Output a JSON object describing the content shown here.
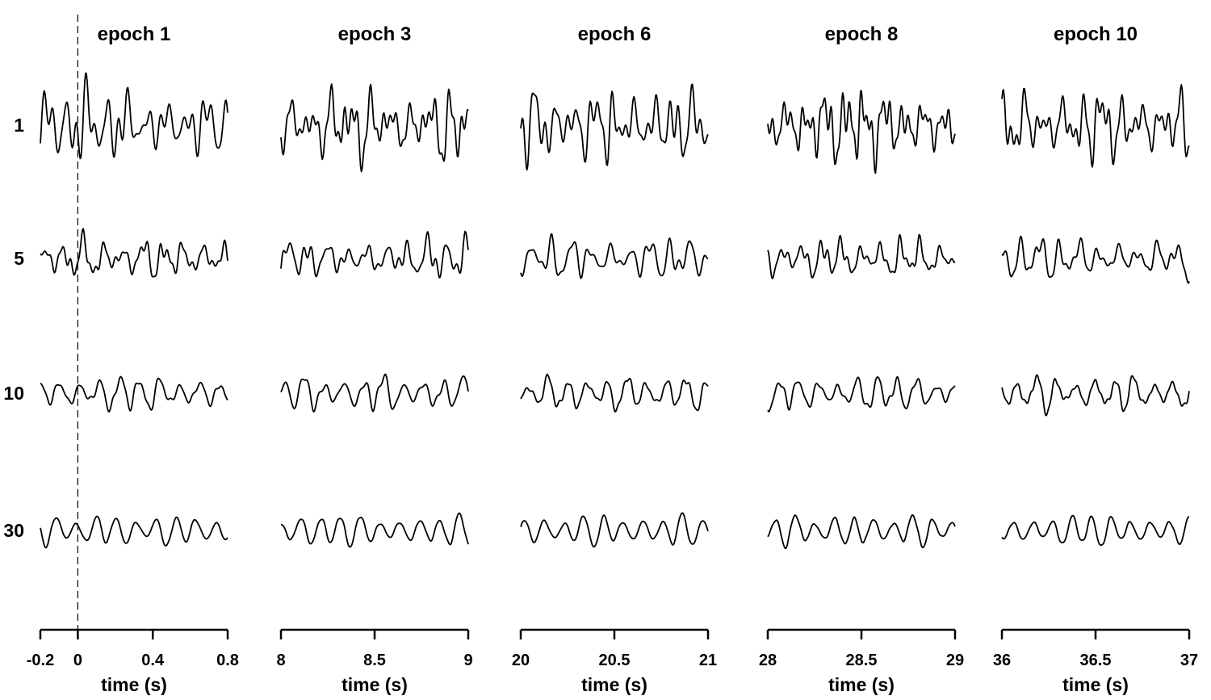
{
  "chart_data": {
    "type": "line",
    "title": "",
    "xlabel": "time (s)",
    "ylabel": "",
    "grid": false,
    "rows": [
      {
        "label": "1",
        "amplitude": 1.0
      },
      {
        "label": "5",
        "amplitude": 0.5
      },
      {
        "label": "10",
        "amplitude": 0.42
      },
      {
        "label": "30",
        "amplitude": 0.35
      }
    ],
    "panels": [
      {
        "title": "epoch 1",
        "xlim": [
          -0.2,
          0.8
        ],
        "ticks": [
          -0.2,
          0,
          0.4,
          0.8
        ],
        "tick_labels": [
          "-0.2",
          "0",
          "0.4",
          "0.8"
        ],
        "onset_marker": 0
      },
      {
        "title": "epoch 3",
        "xlim": [
          8,
          9
        ],
        "ticks": [
          8,
          8.5,
          9
        ],
        "tick_labels": [
          "8",
          "8.5",
          "9"
        ]
      },
      {
        "title": "epoch 6",
        "xlim": [
          20,
          21
        ],
        "ticks": [
          20,
          20.5,
          21
        ],
        "tick_labels": [
          "20",
          "20.5",
          "21"
        ]
      },
      {
        "title": "epoch 8",
        "xlim": [
          28,
          29
        ],
        "ticks": [
          28,
          28.5,
          29
        ],
        "tick_labels": [
          "28",
          "28.5",
          "29"
        ]
      },
      {
        "title": "epoch 10",
        "xlim": [
          36,
          37
        ],
        "ticks": [
          36,
          36.5,
          37
        ],
        "tick_labels": [
          "36",
          "36.5",
          "37"
        ]
      }
    ]
  }
}
